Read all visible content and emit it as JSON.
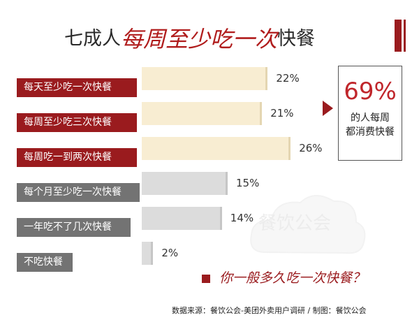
{
  "title": {
    "part1": "七成人",
    "part2": "每周至少吃一次",
    "part3": "快餐"
  },
  "chart_data": {
    "type": "bar",
    "orientation": "horizontal",
    "unit": "%",
    "categories": [
      "每天至少吃一次快餐",
      "每周至少吃三次快餐",
      "每周吃一到两次快餐",
      "每个月至少吃一次快餐",
      "一年吃不了几次快餐",
      "不吃快餐"
    ],
    "values": [
      22,
      21,
      26,
      15,
      14,
      2
    ],
    "value_labels": [
      "22%",
      "21%",
      "26%",
      "15%",
      "14%",
      "2%"
    ],
    "groups": [
      "red",
      "red",
      "red",
      "gray",
      "gray",
      "gray"
    ],
    "colors": {
      "red": "#9a1b1e",
      "gray": "#737373",
      "bar_cream": "#f8edd2",
      "bar_gray": "#dcdcdc"
    }
  },
  "callout": {
    "percent": "69%",
    "line1": "的人每周",
    "line2": "都消费快餐"
  },
  "question": "你一般多久吃一次快餐？",
  "source": "数据来源：餐饮公会-美团外卖用户调研  /  制图：餐饮公会",
  "watermark": "餐饮公会"
}
